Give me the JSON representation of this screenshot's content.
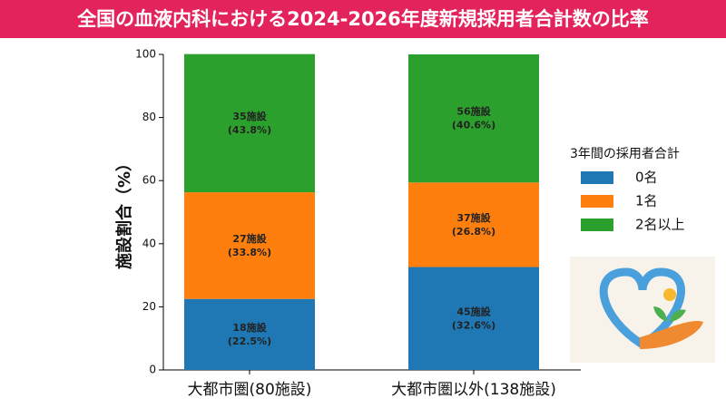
{
  "chart_data": {
    "type": "stacked_bar",
    "title": "全国の血液内科における2024-2026年度新規採用者合計数の比率",
    "y_label": "施設割合（%）",
    "categories": [
      "大都市圏(80施設)",
      "大都市圏以外(138施設)"
    ],
    "legend_title": "3年間の採用者合計",
    "series": [
      {
        "name": "0名",
        "color": "#1f77b4",
        "values": [
          22.5,
          32.6
        ],
        "count_labels": [
          "18施設",
          "45施設"
        ],
        "value_labels": [
          "(22.5%)",
          "(32.6%)"
        ]
      },
      {
        "name": "1名",
        "color": "#ff7f0e",
        "values": [
          33.8,
          26.8
        ],
        "count_labels": [
          "27施設",
          "37施設"
        ],
        "value_labels": [
          "(33.8%)",
          "(26.8%)"
        ]
      },
      {
        "name": "2名以上",
        "color": "#2ca02c",
        "values": [
          43.8,
          40.6
        ],
        "count_labels": [
          "35施設",
          "56施設"
        ],
        "value_labels": [
          "(43.8%)",
          "(40.6%)"
        ]
      }
    ],
    "ylim": [
      0,
      100
    ],
    "yticks": [
      0,
      20,
      40,
      60,
      80,
      100
    ],
    "grid": false,
    "legend": "right"
  }
}
